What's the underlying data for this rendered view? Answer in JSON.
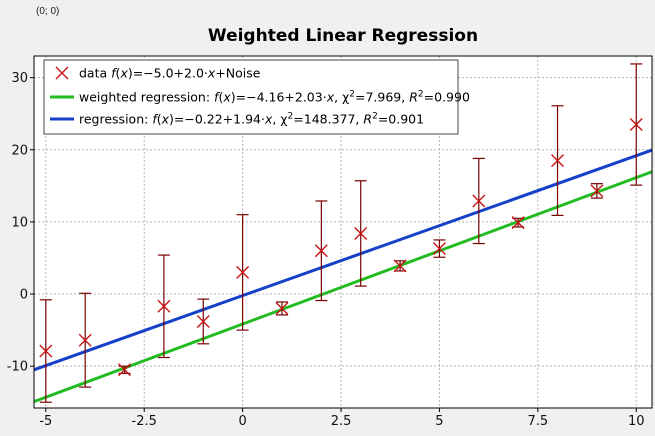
{
  "window": {
    "coord_readout": "(0; 0)"
  },
  "colors": {
    "data": "#c81414",
    "errorbar": "#7a0000",
    "weighted": "#22bb22",
    "regression": "#1540c8",
    "grid": "#b4b4b4"
  },
  "chart_data": {
    "type": "scatter",
    "title": "Weighted Linear Regression",
    "xlabel": "",
    "ylabel": "",
    "xlim": [
      -5.3,
      10.4
    ],
    "ylim": [
      -15.8,
      33
    ],
    "xticks": [
      -5,
      -2.5,
      0,
      2.5,
      5,
      7.5,
      10
    ],
    "xtick_labels": [
      "-5",
      "-2.5",
      "0",
      "2.5",
      "5",
      "7.5",
      "10"
    ],
    "yticks": [
      -10,
      0,
      10,
      20,
      30
    ],
    "ytick_labels": [
      "-10",
      "0",
      "10",
      "20",
      "30"
    ],
    "grid": true,
    "legend_position": "top-left",
    "series": [
      {
        "name": "data",
        "legend_label": "data f(x)=−5.0+2.0·x+Noise",
        "legend_parts": [
          "data ",
          "f",
          "(",
          "x",
          ")=−5.0+2.0·",
          "x",
          "+Noise"
        ],
        "kind": "points_with_errorbars",
        "x": [
          -5,
          -4,
          -3,
          -2,
          -1,
          0,
          1,
          2,
          3,
          4,
          5,
          6,
          7,
          8,
          9,
          10
        ],
        "y": [
          -7.9,
          -6.4,
          -10.5,
          -1.7,
          -3.8,
          3.0,
          -2.0,
          6.0,
          8.4,
          3.9,
          6.3,
          12.9,
          9.9,
          18.5,
          14.3,
          23.5
        ],
        "yerr": [
          7.1,
          6.5,
          0.5,
          7.1,
          3.1,
          8.0,
          0.9,
          6.9,
          7.3,
          0.7,
          1.2,
          5.9,
          0.6,
          7.6,
          1.0,
          8.4
        ]
      },
      {
        "name": "weighted regression",
        "legend_label": "weighted regression: f(x)=−4.16+2.03·x, χ²=7.969, R²=0.990",
        "legend_parts": [
          "weighted regression: ",
          "f",
          "(",
          "x",
          ")=−4.16+2.03·",
          "x",
          ", χ",
          "2",
          "=7.969, ",
          "R",
          "2",
          "=0.990"
        ],
        "kind": "line",
        "intercept": -4.16,
        "slope": 2.03
      },
      {
        "name": "regression",
        "legend_label": "regression: f(x)=−0.22+1.94·x, χ²=148.377, R²=0.901",
        "legend_parts": [
          "regression: ",
          "f",
          "(",
          "x",
          ")=−0.22+1.94·",
          "x",
          ", χ",
          "2",
          "=148.377, ",
          "R",
          "2",
          "=0.901"
        ],
        "kind": "line",
        "intercept": -0.22,
        "slope": 1.94
      }
    ]
  }
}
